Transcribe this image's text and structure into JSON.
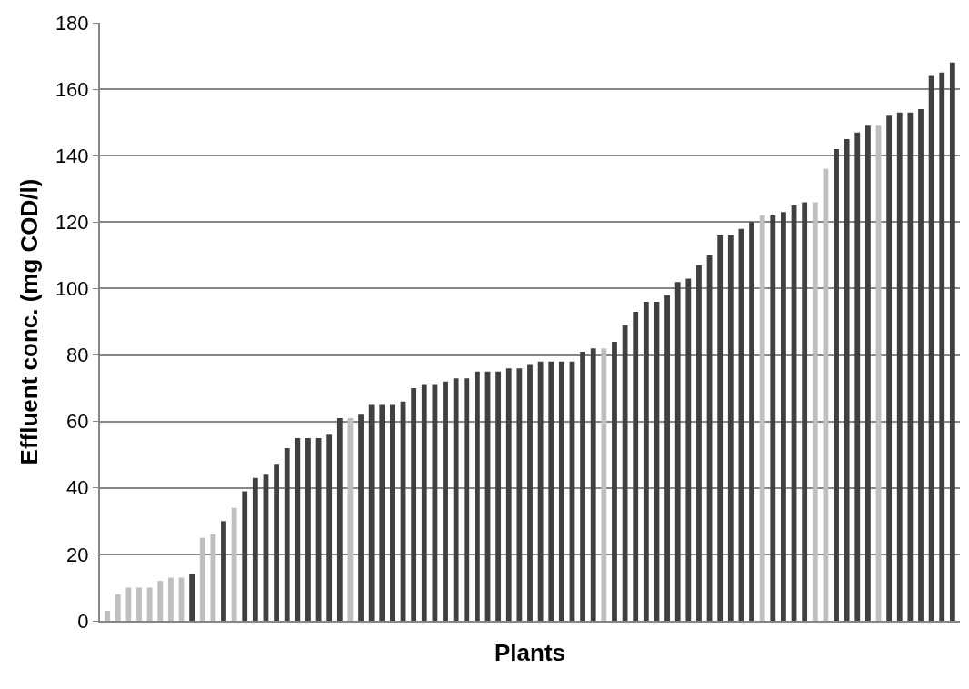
{
  "chart_data": {
    "type": "bar",
    "xlabel": "Plants",
    "ylabel": "Effluent conc. (mg COD/l)",
    "categories": [
      null,
      null,
      null,
      null,
      null,
      null,
      null,
      null,
      null,
      null,
      null,
      null,
      null,
      null,
      null,
      null,
      null,
      null,
      null,
      null,
      null,
      null,
      null,
      null,
      null,
      null,
      null,
      null,
      null,
      null,
      null,
      null,
      null,
      null,
      null,
      null,
      null,
      null,
      null,
      null,
      null,
      null,
      null,
      null,
      null,
      null,
      null,
      null,
      null,
      null,
      null,
      null,
      null,
      null,
      null,
      null,
      null,
      null,
      null,
      null,
      null,
      null,
      null,
      null,
      null,
      null,
      null,
      null,
      null,
      null,
      null,
      null,
      null,
      null,
      null,
      null,
      null,
      null,
      null,
      null,
      null
    ],
    "values": [
      3,
      8,
      10,
      10,
      10,
      12,
      13,
      13,
      14,
      25,
      26,
      30,
      34,
      39,
      43,
      44,
      47,
      52,
      55,
      55,
      55,
      56,
      61,
      61,
      62,
      65,
      65,
      65,
      66,
      70,
      71,
      71,
      72,
      73,
      73,
      75,
      75,
      75,
      76,
      76,
      77,
      78,
      78,
      78,
      78,
      81,
      82,
      82,
      84,
      89,
      93,
      96,
      96,
      98,
      102,
      103,
      107,
      110,
      116,
      116,
      118,
      120,
      122,
      122,
      123,
      125,
      126,
      126,
      136,
      142,
      145,
      147,
      149,
      149,
      152,
      153,
      153,
      154,
      164,
      165,
      168
    ],
    "colors": [
      "#bfbfbf",
      "#bfbfbf",
      "#bfbfbf",
      "#bfbfbf",
      "#bfbfbf",
      "#bfbfbf",
      "#bfbfbf",
      "#bfbfbf",
      "#404040",
      "#bfbfbf",
      "#bfbfbf",
      "#404040",
      "#bfbfbf",
      "#404040",
      "#404040",
      "#404040",
      "#404040",
      "#404040",
      "#404040",
      "#404040",
      "#404040",
      "#404040",
      "#404040",
      "#bfbfbf",
      "#404040",
      "#404040",
      "#404040",
      "#404040",
      "#404040",
      "#404040",
      "#404040",
      "#404040",
      "#404040",
      "#404040",
      "#404040",
      "#404040",
      "#404040",
      "#404040",
      "#404040",
      "#404040",
      "#404040",
      "#404040",
      "#404040",
      "#404040",
      "#404040",
      "#404040",
      "#404040",
      "#bfbfbf",
      "#404040",
      "#404040",
      "#404040",
      "#404040",
      "#404040",
      "#404040",
      "#404040",
      "#404040",
      "#404040",
      "#404040",
      "#404040",
      "#404040",
      "#404040",
      "#404040",
      "#bfbfbf",
      "#404040",
      "#404040",
      "#404040",
      "#404040",
      "#bfbfbf",
      "#bfbfbf",
      "#404040",
      "#404040",
      "#404040",
      "#404040",
      "#bfbfbf",
      "#404040",
      "#404040",
      "#404040",
      "#404040",
      "#404040",
      "#404040",
      "#404040"
    ],
    "ylim": [
      0,
      180
    ],
    "yticks": [
      0,
      20,
      40,
      60,
      80,
      100,
      120,
      140,
      160,
      180
    ],
    "grid": "y"
  }
}
